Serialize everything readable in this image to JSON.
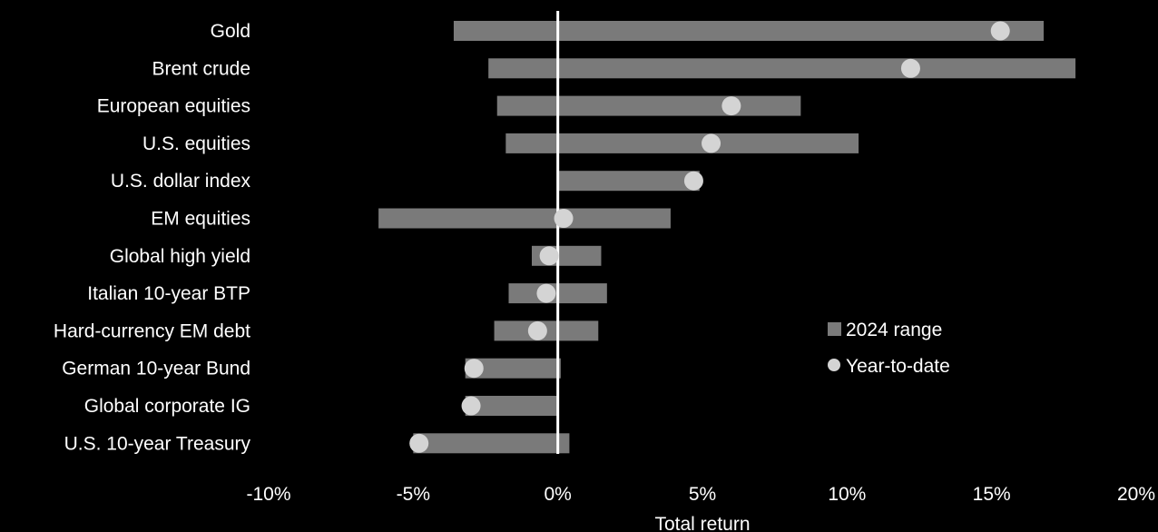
{
  "colors": {
    "background": "#000000",
    "range_bar": "#7a7a7a",
    "ytd_marker": "#d4d4d4",
    "zero_line": "#ffffff",
    "text": "#ffffff"
  },
  "chart_data": {
    "type": "bar",
    "orientation": "horizontal-range",
    "categories": [
      "Gold",
      "Brent crude",
      "European equities",
      "U.S. equities",
      "U.S. dollar index",
      "EM equities",
      "Global high yield",
      "Italian 10-year BTP",
      "Hard-currency EM debt",
      "German 10-year Bund",
      "Global corporate IG",
      "U.S. 10-year Treasury"
    ],
    "series": [
      {
        "name": "2024 range",
        "kind": "range",
        "low": [
          -3.6,
          -2.4,
          -2.1,
          -1.8,
          0.0,
          -6.2,
          -0.9,
          -1.7,
          -2.2,
          -3.2,
          -3.2,
          -5.0
        ],
        "high": [
          16.8,
          17.9,
          8.4,
          10.4,
          4.9,
          3.9,
          1.5,
          1.7,
          1.4,
          0.1,
          0.0,
          0.4
        ]
      },
      {
        "name": "Year-to-date",
        "kind": "point",
        "values": [
          15.3,
          12.2,
          6.0,
          5.3,
          4.7,
          0.2,
          -0.3,
          -0.4,
          -0.7,
          -2.9,
          -3.0,
          -4.8
        ]
      }
    ],
    "xlabel": "Total return",
    "ylabel": "",
    "xlim": [
      -10,
      20
    ],
    "x_ticks": [
      -10,
      -5,
      0,
      5,
      10,
      15,
      20
    ],
    "x_tick_labels": [
      "-10%",
      "-5%",
      "0%",
      "5%",
      "10%",
      "15%",
      "20%"
    ],
    "zero_line": true,
    "grid": false,
    "legend": {
      "placement": "right-middle",
      "items": [
        {
          "label": "2024 range",
          "shape": "square"
        },
        {
          "label": "Year-to-date",
          "shape": "circle"
        }
      ]
    }
  }
}
